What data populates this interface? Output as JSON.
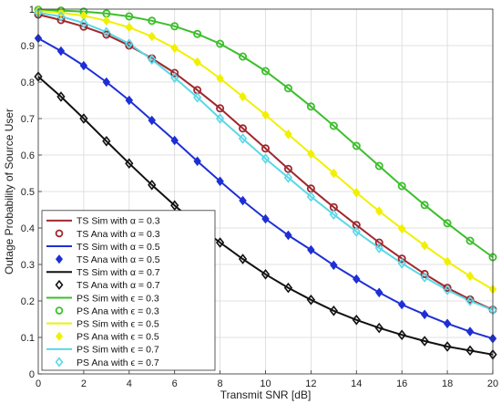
{
  "chart_data": {
    "type": "line",
    "xlabel": "Transmit SNR [dB]",
    "ylabel": "Outage Probability of Source User",
    "xlim": [
      0,
      20
    ],
    "ylim": [
      0,
      1
    ],
    "xticks": [
      0,
      2,
      4,
      6,
      8,
      10,
      12,
      14,
      16,
      18,
      20
    ],
    "yticks": [
      0,
      0.1,
      0.2,
      0.3,
      0.4,
      0.5,
      0.6,
      0.7,
      0.8,
      0.9,
      1
    ],
    "ytick_labels": [
      "0",
      "0.1",
      "0.2",
      "0.3",
      "0.4",
      "0.5",
      "0.6",
      "0.7",
      "0.8",
      "0.9",
      "1"
    ],
    "grid": true,
    "legend_position": "bottom-left",
    "x": [
      0,
      1,
      2,
      3,
      4,
      5,
      6,
      7,
      8,
      9,
      10,
      11,
      12,
      13,
      14,
      15,
      16,
      17,
      18,
      19,
      20
    ],
    "series": [
      {
        "name": "TS Sim with α = 0.3",
        "style": "line",
        "color": "#a0282d",
        "values": [
          0.985,
          0.97,
          0.952,
          0.93,
          0.9,
          0.865,
          0.825,
          0.778,
          0.728,
          0.673,
          0.618,
          0.562,
          0.508,
          0.457,
          0.408,
          0.36,
          0.316,
          0.274,
          0.236,
          0.204,
          0.176
        ]
      },
      {
        "name": "TS Ana with α = 0.3",
        "style": "marker",
        "marker": "circle",
        "color": "#a0282d",
        "values": [
          0.985,
          0.97,
          0.952,
          0.93,
          0.9,
          0.865,
          0.825,
          0.778,
          0.728,
          0.673,
          0.618,
          0.562,
          0.508,
          0.457,
          0.408,
          0.36,
          0.316,
          0.274,
          0.236,
          0.204,
          0.176
        ]
      },
      {
        "name": "TS Sim with α = 0.5",
        "style": "line",
        "color": "#1e2fd6",
        "values": [
          0.92,
          0.885,
          0.845,
          0.8,
          0.75,
          0.695,
          0.64,
          0.583,
          0.528,
          0.475,
          0.425,
          0.38,
          0.34,
          0.298,
          0.26,
          0.223,
          0.19,
          0.163,
          0.138,
          0.116,
          0.097
        ]
      },
      {
        "name": "TS Ana with α = 0.5",
        "style": "marker",
        "marker": "diamond-filled",
        "color": "#1e2fd6",
        "values": [
          0.92,
          0.885,
          0.845,
          0.8,
          0.75,
          0.695,
          0.64,
          0.583,
          0.528,
          0.475,
          0.425,
          0.38,
          0.34,
          0.298,
          0.26,
          0.223,
          0.19,
          0.163,
          0.138,
          0.116,
          0.097
        ]
      },
      {
        "name": "TS Sim with α = 0.7",
        "style": "line",
        "color": "#111111",
        "values": [
          0.815,
          0.76,
          0.7,
          0.638,
          0.577,
          0.518,
          0.462,
          0.408,
          0.36,
          0.315,
          0.273,
          0.236,
          0.203,
          0.173,
          0.148,
          0.126,
          0.107,
          0.09,
          0.075,
          0.064,
          0.053
        ]
      },
      {
        "name": "TS Ana with α = 0.7",
        "style": "marker",
        "marker": "diamond-open",
        "color": "#111111",
        "values": [
          0.815,
          0.76,
          0.7,
          0.638,
          0.577,
          0.518,
          0.462,
          0.408,
          0.36,
          0.315,
          0.273,
          0.236,
          0.203,
          0.173,
          0.148,
          0.126,
          0.107,
          0.09,
          0.075,
          0.064,
          0.053
        ]
      },
      {
        "name": "PS Sim with ϵ = 0.3",
        "style": "line",
        "color": "#3cbf2c",
        "values": [
          0.998,
          0.996,
          0.993,
          0.988,
          0.98,
          0.968,
          0.953,
          0.932,
          0.905,
          0.87,
          0.83,
          0.783,
          0.733,
          0.68,
          0.625,
          0.57,
          0.515,
          0.463,
          0.413,
          0.365,
          0.32
        ]
      },
      {
        "name": "PS Ana with ϵ = 0.3",
        "style": "marker",
        "marker": "circle",
        "color": "#3cbf2c",
        "values": [
          0.998,
          0.996,
          0.993,
          0.988,
          0.98,
          0.968,
          0.953,
          0.932,
          0.905,
          0.87,
          0.83,
          0.783,
          0.733,
          0.68,
          0.625,
          0.57,
          0.515,
          0.463,
          0.413,
          0.365,
          0.32
        ]
      },
      {
        "name": "PS Sim with ϵ = 0.5",
        "style": "line",
        "color": "#f0f000",
        "values": [
          0.995,
          0.99,
          0.982,
          0.968,
          0.95,
          0.925,
          0.893,
          0.855,
          0.81,
          0.76,
          0.71,
          0.657,
          0.603,
          0.55,
          0.497,
          0.446,
          0.398,
          0.352,
          0.308,
          0.268,
          0.232
        ]
      },
      {
        "name": "PS Ana with ϵ = 0.5",
        "style": "marker",
        "marker": "diamond-filled",
        "color": "#f0f000",
        "values": [
          0.995,
          0.99,
          0.982,
          0.968,
          0.95,
          0.925,
          0.893,
          0.855,
          0.81,
          0.76,
          0.71,
          0.657,
          0.603,
          0.55,
          0.497,
          0.446,
          0.398,
          0.352,
          0.308,
          0.268,
          0.232
        ]
      },
      {
        "name": "PS Sim with ϵ = 0.7",
        "style": "line",
        "color": "#5ad8e8",
        "values": [
          0.99,
          0.98,
          0.962,
          0.937,
          0.905,
          0.862,
          0.812,
          0.758,
          0.7,
          0.645,
          0.59,
          0.538,
          0.486,
          0.437,
          0.39,
          0.345,
          0.303,
          0.265,
          0.23,
          0.2,
          0.175
        ]
      },
      {
        "name": "PS Ana with ϵ = 0.7",
        "style": "marker",
        "marker": "diamond-open",
        "color": "#5ad8e8",
        "values": [
          0.99,
          0.98,
          0.962,
          0.937,
          0.905,
          0.862,
          0.812,
          0.758,
          0.7,
          0.645,
          0.59,
          0.538,
          0.486,
          0.437,
          0.39,
          0.345,
          0.303,
          0.265,
          0.23,
          0.2,
          0.175
        ]
      }
    ]
  }
}
